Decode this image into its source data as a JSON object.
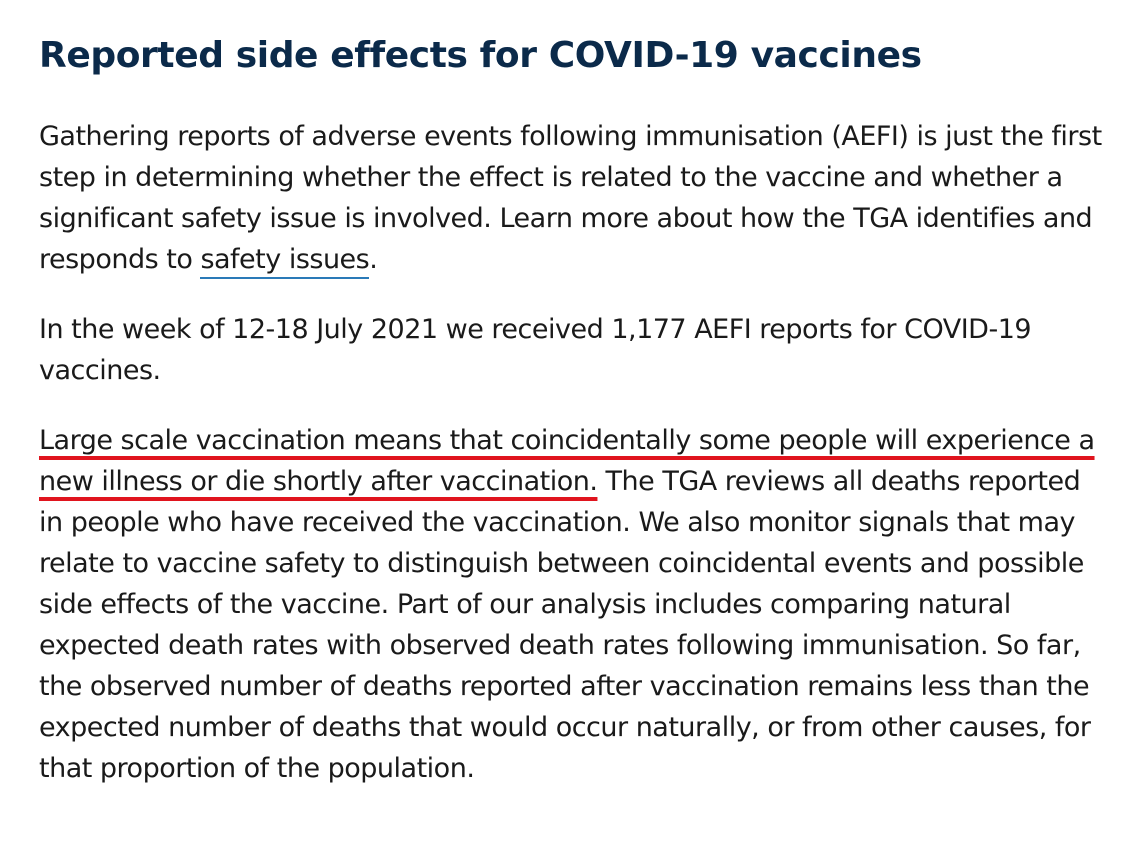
{
  "heading": "Reported side effects for COVID-19 vaccines",
  "paragraph1": {
    "text": "Gathering reports of adverse events following immunisation (AEFI) is just the first step in determining whether the effect is related to the vaccine and whether a significant safety issue is involved. Learn more about how the TGA identifies and responds to ",
    "link_text": "safety issues",
    "end": "."
  },
  "paragraph2": "In the week of 12-18 July 2021 we received 1,177 AEFI reports for COVID-19 vaccines.",
  "paragraph3": {
    "highlighted": "Large scale vaccination means that coincidentally some people will experience a new illness or die shortly after vaccination.",
    "rest": " The TGA reviews all deaths reported in people who have received the vaccination. We also monitor signals that may relate to vaccine safety to distinguish between coincidental events and possible side effects of the vaccine. Part of our analysis includes comparing natural expected death rates with observed death rates following immunisation. So far, the observed number of deaths reported after vaccination remains less than the expected number of deaths that would occur naturally, or from other causes, for that proportion of the population."
  },
  "colors": {
    "heading": "#0b2a4a",
    "body_text": "#1a1a1a",
    "link_underline": "#2a7ab8",
    "highlight_underline": "#e0141e"
  }
}
